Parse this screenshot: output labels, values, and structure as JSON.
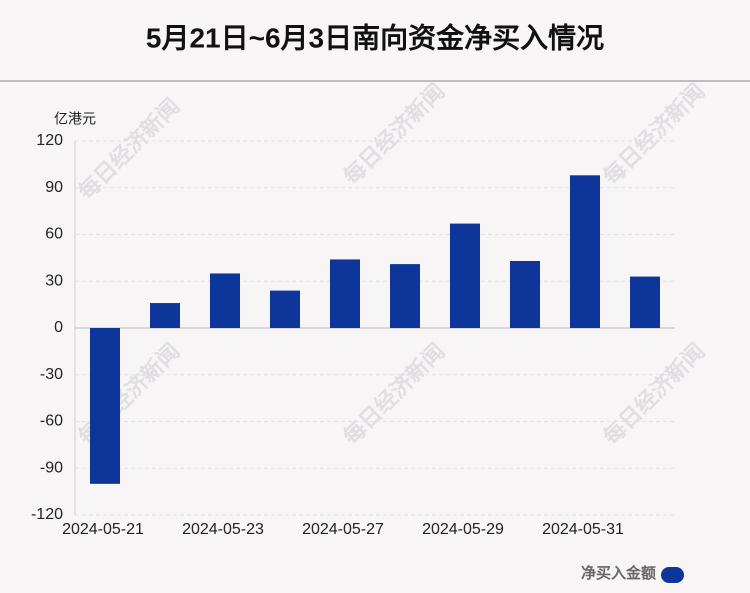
{
  "chart_data": {
    "type": "bar",
    "title": "5月21日~6月3日南向资金净买入情况",
    "y_axis_label": "亿港元",
    "watermark": "每日经济新闻",
    "categories": [
      "2024-05-21",
      null,
      "2024-05-23",
      null,
      "2024-05-27",
      null,
      "2024-05-29",
      null,
      "2024-05-31",
      null
    ],
    "series": [
      {
        "name": "净买入金额",
        "color": "#0e3599",
        "values": [
          -100,
          16,
          35,
          24,
          44,
          41,
          67,
          43,
          98,
          33
        ]
      }
    ],
    "ylim": [
      -120,
      120
    ],
    "yticks": [
      -120,
      -90,
      -60,
      -30,
      0,
      30,
      60,
      90,
      120
    ],
    "grid": true,
    "legend": "bottom-right"
  }
}
